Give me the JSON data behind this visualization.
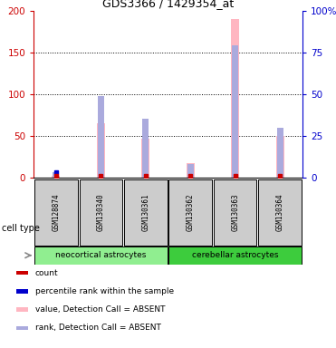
{
  "title": "GDS3366 / 1429354_at",
  "samples": [
    "GSM128874",
    "GSM130340",
    "GSM130361",
    "GSM130362",
    "GSM130363",
    "GSM130364"
  ],
  "groups": [
    {
      "name": "neocortical astrocytes",
      "indices": [
        0,
        1,
        2
      ],
      "color": "#90EE90"
    },
    {
      "name": "cerebellar astrocytes",
      "indices": [
        3,
        4,
        5
      ],
      "color": "#3DCC3D"
    }
  ],
  "value_absent": [
    2,
    65,
    46,
    17,
    190,
    50
  ],
  "rank_absent": [
    3,
    49,
    35,
    8,
    79,
    30
  ],
  "count_values": [
    0,
    0,
    0,
    0,
    0,
    0
  ],
  "percentile_values": [
    3,
    0,
    0,
    0,
    0,
    0
  ],
  "left_ylim": [
    0,
    200
  ],
  "right_ylim": [
    0,
    100
  ],
  "left_yticks": [
    0,
    50,
    100,
    150,
    200
  ],
  "right_yticks": [
    0,
    25,
    50,
    75,
    100
  ],
  "right_yticklabels": [
    "0",
    "25",
    "50",
    "75",
    "100%"
  ],
  "left_color": "#CC0000",
  "right_color": "#0000CC",
  "bar_color_absent_value": "#FFB6C1",
  "bar_color_absent_rank": "#AAAADD",
  "count_color": "#CC0000",
  "percentile_color": "#0000CC",
  "bg_color": "#CCCCCC",
  "legend_items": [
    {
      "color": "#CC0000",
      "label": "count"
    },
    {
      "color": "#0000CC",
      "label": "percentile rank within the sample"
    },
    {
      "color": "#FFB6C1",
      "label": "value, Detection Call = ABSENT"
    },
    {
      "color": "#AAAADD",
      "label": "rank, Detection Call = ABSENT"
    }
  ]
}
